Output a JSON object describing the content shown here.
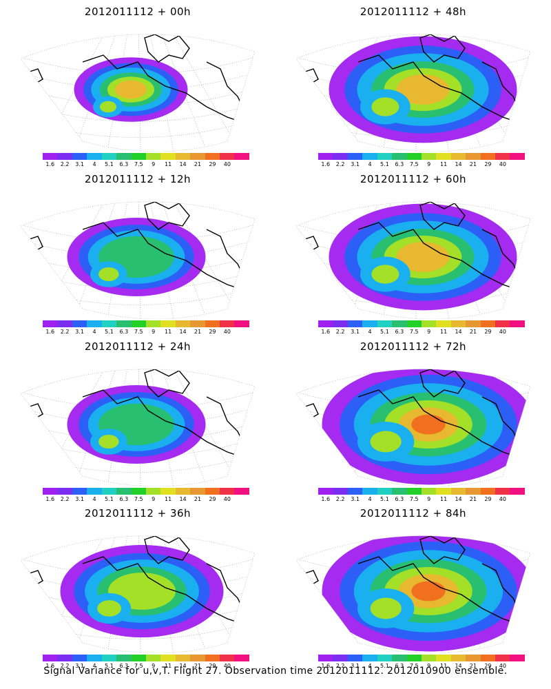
{
  "panels": [
    {
      "title": "2012011112 + 00h",
      "level": 0
    },
    {
      "title": "2012011112 + 48h",
      "level": 3
    },
    {
      "title": "2012011112 + 12h",
      "level": 1
    },
    {
      "title": "2012011112 + 60h",
      "level": 3
    },
    {
      "title": "2012011112 + 24h",
      "level": 1
    },
    {
      "title": "2012011112 + 72h",
      "level": 4
    },
    {
      "title": "2012011112 + 36h",
      "level": 2
    },
    {
      "title": "2012011112 + 84h",
      "level": 4
    }
  ],
  "colorbar": {
    "colors": [
      "#a020f0",
      "#7a2ff0",
      "#2b5ff5",
      "#1ab0f0",
      "#20d0c0",
      "#28c070",
      "#22d028",
      "#a5e028",
      "#e0e020",
      "#e8b830",
      "#e89830",
      "#f07020",
      "#f03048",
      "#f01080"
    ],
    "labels": [
      "1.6",
      "2.2",
      "3.1",
      "4",
      "5.1",
      "6.3",
      "7.5",
      "9",
      "11",
      "14",
      "21",
      "29",
      "40"
    ]
  },
  "footer": "Signal Variance for u,v,T. Flight 27. Observation time 2012011112. 2012010900 ensemble."
}
